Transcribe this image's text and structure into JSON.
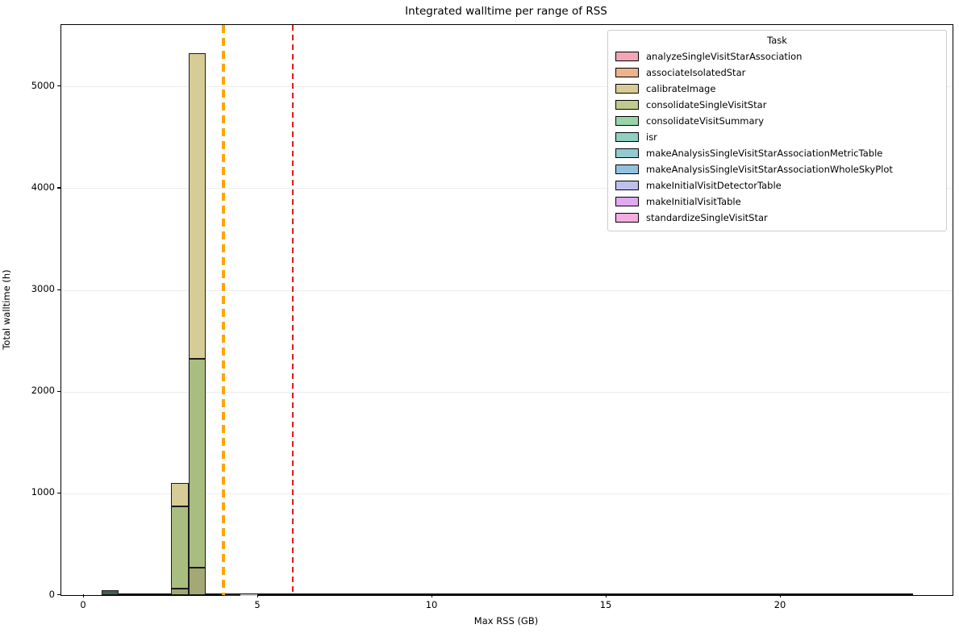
{
  "chart_data": {
    "type": "bar",
    "variant": "layered-histogram",
    "title": "Integrated walltime per range of RSS",
    "xlabel": "Max RSS (GB)",
    "ylabel": "Total walltime (h)",
    "xlim": [
      -0.65,
      24.93
    ],
    "ylim": [
      0,
      5604
    ],
    "x_ticks": [
      0,
      5,
      10,
      15,
      20
    ],
    "y_ticks": [
      0,
      1000,
      2000,
      3000,
      4000,
      5000
    ],
    "grid": "horizontal",
    "grid_color": "#ececec",
    "bin_width_gb": 0.5,
    "baseline_bins_extent_gb": [
      0.5,
      23.8
    ],
    "bars": [
      {
        "range_gb": [
          0.5,
          1.0
        ],
        "total_h": 48,
        "edge": "#1a1a1a",
        "segments": [
          {
            "from_h": 0,
            "to_h": 48,
            "color": "#46604e"
          }
        ]
      },
      {
        "range_gb": [
          2.5,
          3.0
        ],
        "total_h": 1100,
        "edge": "#1a1a1a",
        "segments": [
          {
            "from_h": 0,
            "to_h": 60,
            "color": "#a2a875"
          },
          {
            "from_h": 60,
            "to_h": 875,
            "color": "#a9bd81"
          },
          {
            "from_h": 875,
            "to_h": 1100,
            "color": "#d6cc96"
          }
        ]
      },
      {
        "range_gb": [
          3.0,
          3.5
        ],
        "total_h": 5330,
        "edge": "#1a1a1a",
        "segments": [
          {
            "from_h": 0,
            "to_h": 270,
            "color": "#a3a876"
          },
          {
            "from_h": 270,
            "to_h": 2325,
            "color": "#a9bd81"
          },
          {
            "from_h": 2325,
            "to_h": 5330,
            "color": "#d6cc96"
          }
        ]
      },
      {
        "range_gb": [
          4.0,
          4.5
        ],
        "total_h": 8,
        "edge": "#2a2a2a",
        "segments": [
          {
            "from_h": 0,
            "to_h": 8,
            "color": "#5a5f55"
          }
        ]
      },
      {
        "range_gb": [
          4.5,
          5.0
        ],
        "total_h": 4,
        "edge": "#c9c9c9",
        "segments": [
          {
            "from_h": 0,
            "to_h": 4,
            "color": "#e2e2e2"
          }
        ]
      }
    ],
    "vlines": [
      {
        "name": "threshold-4gb",
        "x": 4.0,
        "color": "#ffa500",
        "style": "dashed",
        "width": 3.5,
        "dash_on": 10,
        "dash_off": 6
      },
      {
        "name": "threshold-6gb",
        "x": 6.0,
        "color": "#e01b1b",
        "style": "dashed",
        "width": 2,
        "dash_on": 7,
        "dash_off": 5
      }
    ],
    "legend": {
      "title": "Task",
      "position": "upper right",
      "entries": [
        {
          "label": "analyzeSingleVisitStarAssociation",
          "color": "#f4a6b6"
        },
        {
          "label": "associateIsolatedStar",
          "color": "#edb48c"
        },
        {
          "label": "calibrateImage",
          "color": "#d8cb96"
        },
        {
          "label": "consolidateSingleVisitStar",
          "color": "#c0ca8e"
        },
        {
          "label": "consolidateVisitSummary",
          "color": "#98d4a8"
        },
        {
          "label": "isr",
          "color": "#8fd0c0"
        },
        {
          "label": "makeAnalysisSingleVisitStarAssociationMetricTable",
          "color": "#92cbce"
        },
        {
          "label": "makeAnalysisSingleVisitStarAssociationWholeSkyPlot",
          "color": "#92c3de"
        },
        {
          "label": "makeInitialVisitDetectorTable",
          "color": "#bdc0ed"
        },
        {
          "label": "makeInitialVisitTable",
          "color": "#e0aaf0"
        },
        {
          "label": "standardizeSingleVisitStar",
          "color": "#f6ace0"
        }
      ]
    }
  }
}
